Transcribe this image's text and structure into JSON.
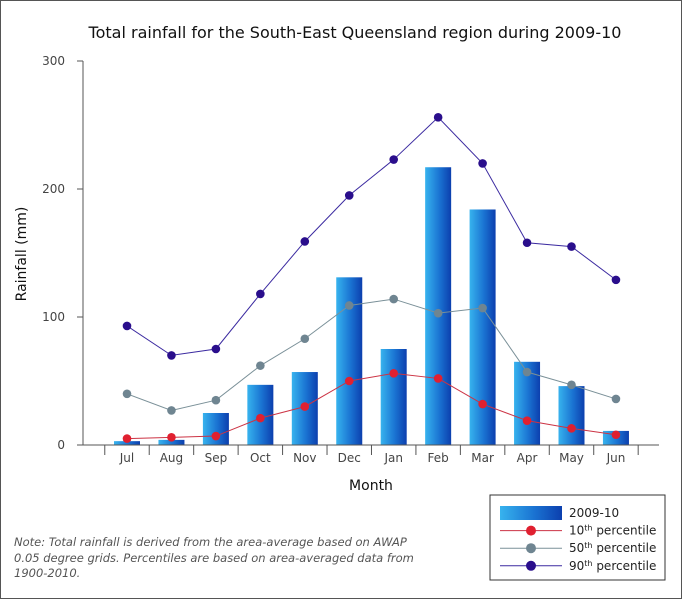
{
  "chart_data": {
    "type": "bar",
    "title": "Total rainfall for the South-East Queensland region during 2009-10",
    "xlabel": "Month",
    "ylabel": "Rainfall (mm)",
    "ylim": [
      0,
      300
    ],
    "yticks": [
      "0",
      "100",
      "200",
      "300"
    ],
    "grid": false,
    "legend_position": "bottom-right",
    "categories": [
      "Jul",
      "Aug",
      "Sep",
      "Oct",
      "Nov",
      "Dec",
      "Jan",
      "Feb",
      "Mar",
      "Apr",
      "May",
      "Jun"
    ],
    "series": [
      {
        "name": "2009-10",
        "kind": "bar",
        "color": "#1565c8",
        "values": [
          3,
          4,
          25,
          47,
          57,
          131,
          75,
          217,
          184,
          65,
          46,
          11
        ]
      },
      {
        "name": "10th percentile",
        "name_ordinal": "10",
        "name_suffix": "th",
        "name_rest": " percentile",
        "kind": "line",
        "color": "#e02030",
        "line_color": "#cc3344",
        "values": [
          5,
          6,
          7,
          21,
          30,
          50,
          56,
          52,
          32,
          19,
          13,
          8
        ]
      },
      {
        "name": "50th percentile",
        "name_ordinal": "50",
        "name_suffix": "th",
        "name_rest": " percentile",
        "kind": "line",
        "color": "#6f8591",
        "line_color": "#7a9098",
        "values": [
          40,
          27,
          35,
          62,
          83,
          109,
          114,
          103,
          107,
          57,
          47,
          36
        ]
      },
      {
        "name": "90th percentile",
        "name_ordinal": "90",
        "name_suffix": "th",
        "name_rest": " percentile",
        "kind": "line",
        "color": "#2a0e8c",
        "line_color": "#3b2aa0",
        "values": [
          93,
          70,
          75,
          118,
          159,
          195,
          223,
          256,
          220,
          158,
          155,
          129
        ]
      }
    ]
  },
  "note": "Note: Total rainfall is derived from the area-average based on AWAP 0.05 degree grids. Percentiles are based on area-averaged data from 1900-2010."
}
